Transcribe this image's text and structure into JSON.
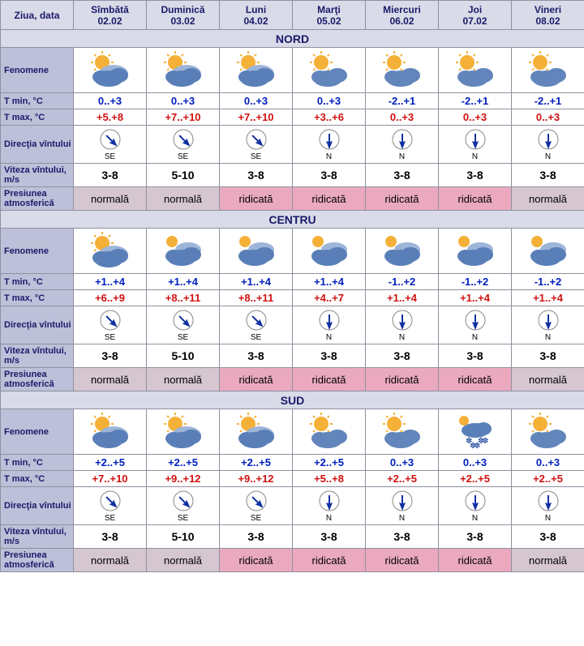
{
  "header": {
    "ziua_data": "Ziua, data",
    "days": [
      {
        "name": "Sîmbătă",
        "date": "02.02"
      },
      {
        "name": "Duminică",
        "date": "03.02"
      },
      {
        "name": "Luni",
        "date": "04.02"
      },
      {
        "name": "Marţi",
        "date": "05.02"
      },
      {
        "name": "Miercuri",
        "date": "06.02"
      },
      {
        "name": "Joi",
        "date": "07.02"
      },
      {
        "name": "Vineri",
        "date": "08.02"
      }
    ]
  },
  "row_labels": {
    "fenomene": "Fenomene",
    "tmin": "T min, °C",
    "tmax": "T max, °C",
    "directia": "Direcţia vîntului",
    "viteza": "Viteza vîntului, m/s",
    "presiunea": "Presiunea atmosferică"
  },
  "colors": {
    "header_bg": "#d9dbe8",
    "label_bg": "#bcc0d8",
    "header_text": "#1a1a6a",
    "tmin_text": "#0020c0",
    "tmax_text": "#d01010",
    "press_normala_bg": "#d5c6d0",
    "press_ridicata_bg": "#eaa9bf",
    "border": "#9090a0",
    "wind_circle": "#888888",
    "wind_arrow": "#1030a0",
    "sun": "#f5b038",
    "cloud_front": "#5a7fb8",
    "cloud_back": "#9db5d8"
  },
  "regions": [
    {
      "name": "NORD",
      "fenomene": [
        "partly-cloudy",
        "partly-cloudy",
        "partly-cloudy",
        "partly-cloudy-light",
        "partly-cloudy-light",
        "partly-cloudy-light",
        "partly-cloudy-light"
      ],
      "tmin": [
        "0..+3",
        "0..+3",
        "0..+3",
        "0..+3",
        "-2..+1",
        "-2..+1",
        "-2..+1"
      ],
      "tmax": [
        "+5.+8",
        "+7..+10",
        "+7..+10",
        "+3..+6",
        "0..+3",
        "0..+3",
        "0..+3"
      ],
      "wind_dir": [
        "SE",
        "SE",
        "SE",
        "N",
        "N",
        "N",
        "N"
      ],
      "wind_speed": [
        "3-8",
        "5-10",
        "3-8",
        "3-8",
        "3-8",
        "3-8",
        "3-8"
      ],
      "pressure": [
        "normală",
        "normală",
        "ridicată",
        "ridicată",
        "ridicată",
        "ridicată",
        "normală"
      ]
    },
    {
      "name": "CENTRU",
      "fenomene": [
        "partly-cloudy",
        "cloudy",
        "cloudy",
        "cloudy",
        "cloudy",
        "cloudy",
        "cloudy"
      ],
      "tmin": [
        "+1..+4",
        "+1..+4",
        "+1..+4",
        "+1..+4",
        "-1..+2",
        "-1..+2",
        "-1..+2"
      ],
      "tmax": [
        "+6..+9",
        "+8..+11",
        "+8..+11",
        "+4..+7",
        "+1..+4",
        "+1..+4",
        "+1..+4"
      ],
      "wind_dir": [
        "SE",
        "SE",
        "SE",
        "N",
        "N",
        "N",
        "N"
      ],
      "wind_speed": [
        "3-8",
        "5-10",
        "3-8",
        "3-8",
        "3-8",
        "3-8",
        "3-8"
      ],
      "pressure": [
        "normală",
        "normală",
        "ridicată",
        "ridicată",
        "ridicată",
        "ridicată",
        "normală"
      ]
    },
    {
      "name": "SUD",
      "fenomene": [
        "partly-cloudy",
        "partly-cloudy",
        "partly-cloudy",
        "partly-cloudy-light",
        "partly-cloudy-light",
        "snow",
        "partly-cloudy-light"
      ],
      "tmin": [
        "+2..+5",
        "+2..+5",
        "+2..+5",
        "+2..+5",
        "0..+3",
        "0..+3",
        "0..+3"
      ],
      "tmax": [
        "+7..+10",
        "+9..+12",
        "+9..+12",
        "+5..+8",
        "+2..+5",
        "+2..+5",
        "+2..+5"
      ],
      "wind_dir": [
        "SE",
        "SE",
        "SE",
        "N",
        "N",
        "N",
        "N"
      ],
      "wind_speed": [
        "3-8",
        "5-10",
        "3-8",
        "3-8",
        "3-8",
        "3-8",
        "3-8"
      ],
      "pressure": [
        "normală",
        "normală",
        "ridicată",
        "ridicată",
        "ridicată",
        "ridicată",
        "normală"
      ]
    }
  ]
}
